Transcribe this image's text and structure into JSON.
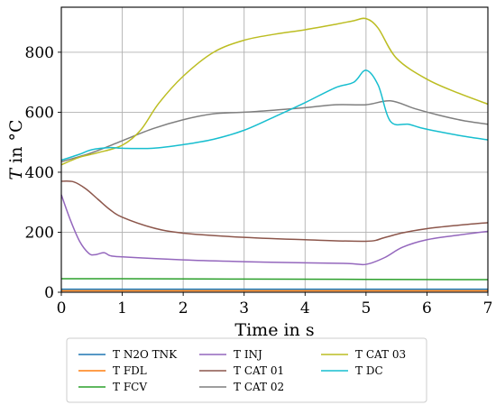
{
  "chart_data": {
    "type": "line",
    "xlabel": "Time in s",
    "ylabel_italic": "T",
    "ylabel_rest": " in °C",
    "xlim": [
      0,
      7
    ],
    "ylim": [
      0,
      950
    ],
    "xticks": [
      0,
      1,
      2,
      3,
      4,
      5,
      6,
      7
    ],
    "xtick_labels": [
      "0",
      "1",
      "2",
      "3",
      "4",
      "5",
      "6",
      "7"
    ],
    "yticks": [
      0,
      200,
      400,
      600,
      800
    ],
    "ytick_labels": [
      "0",
      "200",
      "400",
      "600",
      "800"
    ],
    "grid": true,
    "legend_placement": "below",
    "series": [
      {
        "name": "T N2O TNK",
        "color": "#1f77b4",
        "x": [
          0,
          7
        ],
        "y": [
          10,
          10
        ]
      },
      {
        "name": "T FDL",
        "color": "#ff7f0e",
        "x": [
          0,
          7
        ],
        "y": [
          5,
          5
        ]
      },
      {
        "name": "T FCV",
        "color": "#2ca02c",
        "x": [
          0,
          1,
          3,
          5,
          7
        ],
        "y": [
          45,
          45,
          44,
          43,
          42
        ]
      },
      {
        "name": "T INJ",
        "color": "#9467bd",
        "x": [
          0,
          0.15,
          0.3,
          0.45,
          0.55,
          0.7,
          0.8,
          1,
          2,
          3,
          4,
          4.7,
          5,
          5.3,
          5.6,
          6,
          6.5,
          7
        ],
        "y": [
          325,
          240,
          170,
          130,
          125,
          132,
          122,
          118,
          108,
          102,
          98,
          96,
          93,
          115,
          150,
          175,
          190,
          203
        ]
      },
      {
        "name": "T CAT 01",
        "color": "#8c564b",
        "x": [
          0,
          0.2,
          0.4,
          0.6,
          0.8,
          1,
          1.5,
          2,
          3,
          4,
          5,
          5.3,
          5.6,
          6,
          6.5,
          7
        ],
        "y": [
          370,
          368,
          345,
          310,
          275,
          250,
          215,
          197,
          183,
          175,
          170,
          182,
          198,
          212,
          223,
          232
        ]
      },
      {
        "name": "T CAT 02",
        "color": "#7f7f7f",
        "x": [
          0,
          0.5,
          1,
          1.5,
          2,
          2.5,
          3,
          3.5,
          4,
          4.5,
          5,
          5.4,
          5.8,
          6.2,
          6.6,
          7
        ],
        "y": [
          435,
          465,
          505,
          545,
          575,
          595,
          600,
          607,
          615,
          625,
          625,
          638,
          612,
          590,
          572,
          560
        ]
      },
      {
        "name": "T CAT 03",
        "color": "#bcbd22",
        "x": [
          0,
          0.3,
          0.6,
          1,
          1.3,
          1.6,
          2,
          2.5,
          3,
          3.5,
          4,
          4.5,
          4.8,
          5,
          5.2,
          5.5,
          6,
          6.5,
          7
        ],
        "y": [
          425,
          450,
          465,
          490,
          540,
          630,
          720,
          800,
          840,
          860,
          875,
          893,
          905,
          912,
          880,
          780,
          710,
          665,
          627
        ]
      },
      {
        "name": "T DC",
        "color": "#17becf",
        "x": [
          0,
          0.3,
          0.5,
          0.8,
          1,
          1.5,
          2,
          2.5,
          3,
          3.5,
          4,
          4.5,
          4.8,
          5,
          5.2,
          5.4,
          5.7,
          5.9,
          6.2,
          6.6,
          7
        ],
        "y": [
          440,
          460,
          475,
          482,
          480,
          480,
          492,
          510,
          540,
          585,
          632,
          682,
          700,
          740,
          690,
          570,
          560,
          548,
          535,
          520,
          508
        ]
      }
    ]
  }
}
